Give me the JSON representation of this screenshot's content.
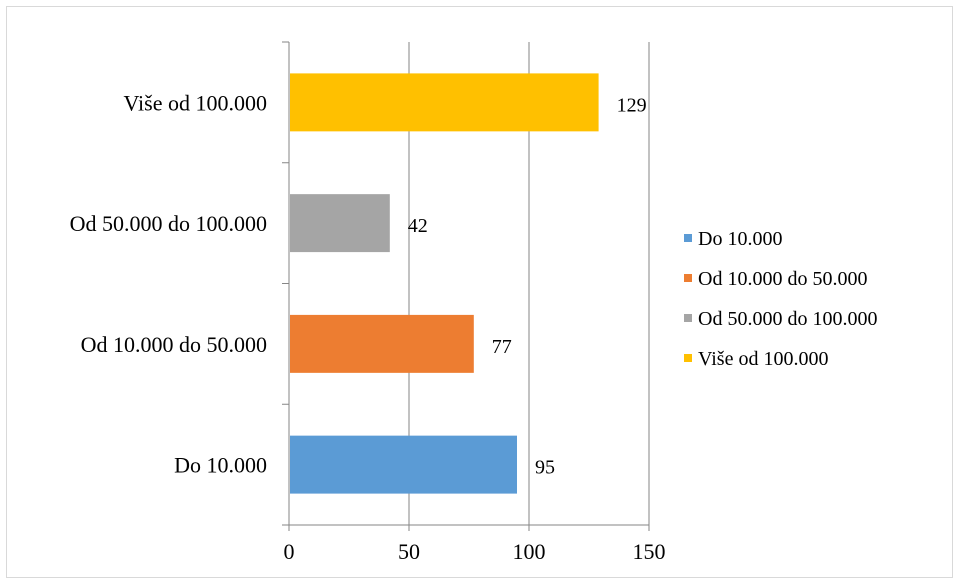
{
  "chart_data": {
    "type": "bar",
    "orientation": "horizontal",
    "categories": [
      "Do 10.000",
      "Od 10.000 do 50.000",
      "Od 50.000 do 100.000",
      "Više od 100.000"
    ],
    "values": [
      95,
      77,
      42,
      129
    ],
    "colors": [
      "#5b9bd5",
      "#ed7d31",
      "#a5a5a5",
      "#ffc000"
    ],
    "xlim": [
      0,
      150
    ],
    "xticks": [
      "0",
      "50",
      "100",
      "150"
    ],
    "grid": "vertical",
    "legend": {
      "position": "right",
      "entries": [
        "Do 10.000",
        "Od 10.000 do 50.000",
        "Od 50.000 do 100.000",
        "Više od 100.000"
      ]
    }
  }
}
